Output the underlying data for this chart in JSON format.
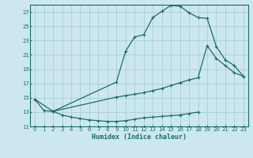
{
  "xlabel": "Humidex (Indice chaleur)",
  "ylabel": "",
  "bg_color": "#cce8ee",
  "grid_color": "#aacdd6",
  "line_color": "#1a6b6b",
  "xlim": [
    -0.5,
    23.5
  ],
  "ylim": [
    11,
    28
  ],
  "xticks": [
    0,
    1,
    2,
    3,
    4,
    5,
    6,
    7,
    8,
    9,
    10,
    11,
    12,
    13,
    14,
    15,
    16,
    17,
    18,
    19,
    20,
    21,
    22,
    23
  ],
  "yticks": [
    11,
    13,
    15,
    17,
    19,
    21,
    23,
    25,
    27
  ],
  "curve1_x": [
    0,
    1,
    2,
    3,
    4,
    5,
    6,
    7,
    8,
    9,
    10,
    11,
    12,
    13,
    14,
    15,
    16,
    17,
    18
  ],
  "curve1_y": [
    14.8,
    13.2,
    13.1,
    12.6,
    12.3,
    12.1,
    11.9,
    11.8,
    11.7,
    11.7,
    11.8,
    12.0,
    12.2,
    12.3,
    12.4,
    12.5,
    12.6,
    12.8,
    13.0
  ],
  "curve2_x": [
    0,
    2,
    9,
    10,
    11,
    12,
    13,
    14,
    15,
    16,
    17,
    18,
    19,
    20,
    21,
    22,
    23
  ],
  "curve2_y": [
    14.8,
    13.1,
    17.2,
    21.5,
    23.5,
    23.8,
    26.2,
    27.1,
    27.9,
    27.8,
    26.9,
    26.2,
    26.1,
    22.2,
    20.3,
    19.5,
    18.0
  ],
  "curve3_x": [
    2,
    9,
    10,
    11,
    12,
    13,
    14,
    15,
    16,
    17,
    18,
    19,
    20,
    21,
    22,
    23
  ],
  "curve3_y": [
    13.1,
    15.1,
    15.3,
    15.5,
    15.7,
    16.0,
    16.3,
    16.7,
    17.1,
    17.5,
    17.8,
    22.3,
    20.5,
    19.5,
    18.5,
    18.0
  ]
}
